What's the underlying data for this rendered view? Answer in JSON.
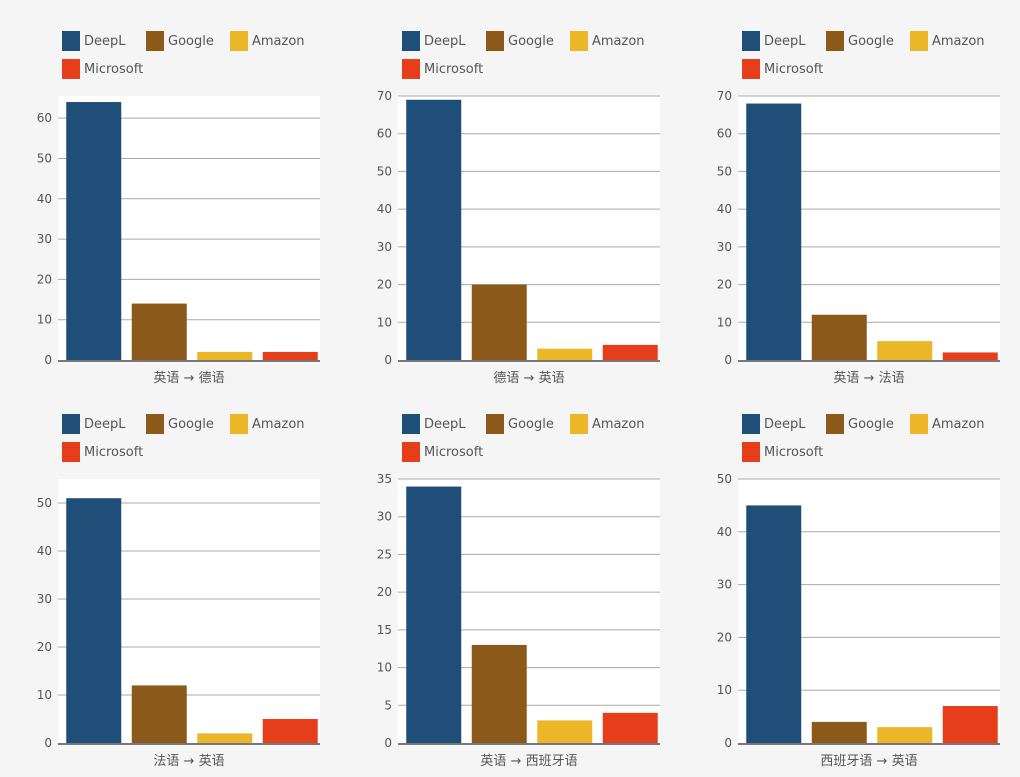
{
  "legend_items": [
    {
      "name": "DeepL",
      "color": "#1f4e79"
    },
    {
      "name": "Google",
      "color": "#8b5a1b"
    },
    {
      "name": "Amazon",
      "color": "#ebb728"
    },
    {
      "name": "Microsoft",
      "color": "#e63e1b"
    }
  ],
  "chart_data": [
    {
      "type": "bar",
      "title": "",
      "xlabel": "英语 → 德语",
      "ylabel": "",
      "categories": [
        "DeepL",
        "Google",
        "Amazon",
        "Microsoft"
      ],
      "values": [
        64,
        14,
        2,
        2
      ],
      "colors": [
        "#1f4e79",
        "#8b5a1b",
        "#ebb728",
        "#e63e1b"
      ],
      "yticks": [
        0,
        10,
        20,
        30,
        40,
        50,
        60
      ],
      "ylim": [
        0,
        65.5
      ],
      "grid": true,
      "legend": "top-left"
    },
    {
      "type": "bar",
      "title": "",
      "xlabel": "德语 → 英语",
      "ylabel": "",
      "categories": [
        "DeepL",
        "Google",
        "Amazon",
        "Microsoft"
      ],
      "values": [
        69,
        20,
        3,
        4
      ],
      "colors": [
        "#1f4e79",
        "#8b5a1b",
        "#ebb728",
        "#e63e1b"
      ],
      "yticks": [
        0,
        10,
        20,
        30,
        40,
        50,
        60,
        70
      ],
      "ylim": [
        0,
        70
      ],
      "grid": true,
      "legend": "top-left"
    },
    {
      "type": "bar",
      "title": "",
      "xlabel": "英语 → 法语",
      "ylabel": "",
      "categories": [
        "DeepL",
        "Google",
        "Amazon",
        "Microsoft"
      ],
      "values": [
        68,
        12,
        5,
        2
      ],
      "colors": [
        "#1f4e79",
        "#8b5a1b",
        "#ebb728",
        "#e63e1b"
      ],
      "yticks": [
        0,
        10,
        20,
        30,
        40,
        50,
        60,
        70
      ],
      "ylim": [
        0,
        70
      ],
      "grid": true,
      "legend": "top-left"
    },
    {
      "type": "bar",
      "title": "",
      "xlabel": "法语 → 英语",
      "ylabel": "",
      "categories": [
        "DeepL",
        "Google",
        "Amazon",
        "Microsoft"
      ],
      "values": [
        51,
        12,
        2,
        5
      ],
      "colors": [
        "#1f4e79",
        "#8b5a1b",
        "#ebb728",
        "#e63e1b"
      ],
      "yticks": [
        0,
        10,
        20,
        30,
        40,
        50
      ],
      "ylim": [
        0,
        55
      ],
      "grid": true,
      "legend": "top-left"
    },
    {
      "type": "bar",
      "title": "",
      "xlabel": "英语 → 西班牙语",
      "ylabel": "",
      "categories": [
        "DeepL",
        "Google",
        "Amazon",
        "Microsoft"
      ],
      "values": [
        34,
        13,
        3,
        4
      ],
      "colors": [
        "#1f4e79",
        "#8b5a1b",
        "#ebb728",
        "#e63e1b"
      ],
      "yticks": [
        0,
        5,
        10,
        15,
        20,
        25,
        30,
        35
      ],
      "ylim": [
        0,
        35
      ],
      "grid": true,
      "legend": "top-left"
    },
    {
      "type": "bar",
      "title": "",
      "xlabel": "西班牙语 → 英语",
      "ylabel": "",
      "categories": [
        "DeepL",
        "Google",
        "Amazon",
        "Microsoft"
      ],
      "values": [
        45,
        4,
        3,
        7
      ],
      "colors": [
        "#1f4e79",
        "#8b5a1b",
        "#ebb728",
        "#e63e1b"
      ],
      "yticks": [
        0,
        10,
        20,
        30,
        40,
        50
      ],
      "ylim": [
        0,
        50
      ],
      "grid": true,
      "legend": "top-left"
    }
  ]
}
